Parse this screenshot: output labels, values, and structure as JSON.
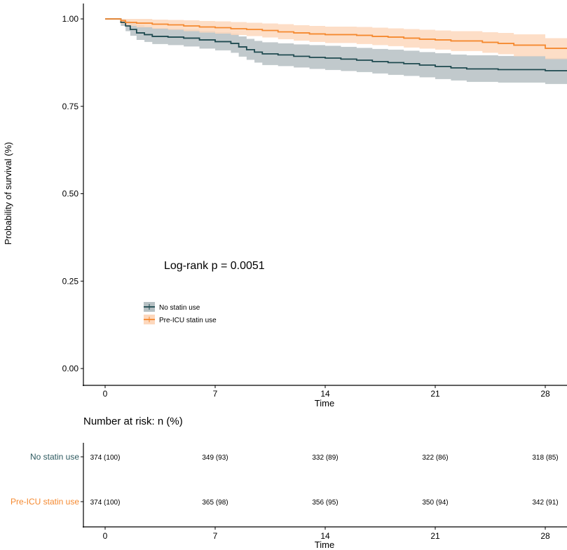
{
  "chart_data": {
    "type": "line",
    "subtype": "kaplan-meier",
    "xlabel": "Time",
    "ylabel": "Probability of survival (%)",
    "xlim": [
      0,
      30
    ],
    "ylim": [
      0,
      1
    ],
    "xticks": [
      "0",
      "7",
      "14",
      "21",
      "28"
    ],
    "xtick_values": [
      0,
      7,
      14,
      21,
      28
    ],
    "yticks": [
      "0.00",
      "0.25",
      "0.50",
      "0.75",
      "1.00"
    ],
    "ytick_values": [
      0,
      0.25,
      0.5,
      0.75,
      1
    ],
    "annotation": "Log-rank p = 0.0051",
    "legend_placement": "inside-left",
    "series": [
      {
        "name": "No statin use",
        "color": "#1f4a50",
        "band_color": "#b6c0c3",
        "time": [
          0,
          1,
          1.3,
          1.6,
          2,
          2.5,
          3,
          4,
          5,
          6,
          7,
          8,
          8.5,
          9,
          9.5,
          10,
          11,
          12,
          13,
          14,
          15,
          16,
          17,
          18,
          19,
          20,
          21,
          22,
          23,
          25,
          28,
          29.6
        ],
        "surv": [
          1,
          0.99,
          0.98,
          0.97,
          0.96,
          0.955,
          0.95,
          0.948,
          0.945,
          0.94,
          0.935,
          0.93,
          0.92,
          0.912,
          0.905,
          0.9,
          0.897,
          0.893,
          0.89,
          0.888,
          0.885,
          0.882,
          0.878,
          0.875,
          0.872,
          0.868,
          0.864,
          0.86,
          0.857,
          0.855,
          0.852,
          0.852
        ],
        "lower": [
          1,
          0.98,
          0.965,
          0.952,
          0.94,
          0.934,
          0.928,
          0.925,
          0.921,
          0.915,
          0.91,
          0.903,
          0.892,
          0.883,
          0.875,
          0.868,
          0.865,
          0.861,
          0.857,
          0.854,
          0.851,
          0.848,
          0.844,
          0.84,
          0.837,
          0.833,
          0.828,
          0.824,
          0.82,
          0.818,
          0.814,
          0.814
        ],
        "upper": [
          1,
          1,
          0.995,
          0.99,
          0.982,
          0.978,
          0.974,
          0.972,
          0.97,
          0.966,
          0.962,
          0.958,
          0.95,
          0.943,
          0.937,
          0.933,
          0.93,
          0.927,
          0.925,
          0.923,
          0.92,
          0.917,
          0.914,
          0.912,
          0.909,
          0.905,
          0.902,
          0.898,
          0.896,
          0.894,
          0.888,
          0.888
        ]
      },
      {
        "name": "Pre-ICU statin use",
        "color": "#f5892f",
        "band_color": "#fdd8bd",
        "time": [
          0,
          1,
          1.3,
          2,
          3,
          4,
          5,
          6,
          7,
          8,
          9,
          10,
          11,
          12,
          13,
          14,
          16,
          17,
          18,
          19,
          20,
          21,
          22,
          24,
          25,
          26,
          28,
          29.6
        ],
        "surv": [
          1,
          0.995,
          0.99,
          0.988,
          0.985,
          0.983,
          0.98,
          0.977,
          0.975,
          0.972,
          0.97,
          0.967,
          0.963,
          0.96,
          0.957,
          0.955,
          0.953,
          0.95,
          0.948,
          0.945,
          0.942,
          0.94,
          0.937,
          0.933,
          0.93,
          0.925,
          0.916,
          0.916
        ],
        "lower": [
          1,
          0.986,
          0.98,
          0.976,
          0.972,
          0.969,
          0.965,
          0.961,
          0.958,
          0.954,
          0.951,
          0.947,
          0.942,
          0.938,
          0.934,
          0.931,
          0.928,
          0.925,
          0.922,
          0.918,
          0.915,
          0.912,
          0.908,
          0.903,
          0.899,
          0.893,
          0.885,
          0.885
        ],
        "upper": [
          1,
          1,
          1,
          1,
          0.998,
          0.997,
          0.996,
          0.994,
          0.993,
          0.991,
          0.989,
          0.987,
          0.985,
          0.982,
          0.98,
          0.978,
          0.977,
          0.975,
          0.973,
          0.971,
          0.969,
          0.967,
          0.965,
          0.962,
          0.96,
          0.956,
          0.945,
          0.945
        ]
      }
    ]
  },
  "risk_table": {
    "title": "Number at risk: n (%)",
    "xlabel": "Time",
    "rows": [
      {
        "label": "No statin use",
        "color": "#2e5a60",
        "values": [
          "374 (100)",
          "349 (93)",
          "332 (89)",
          "322 (86)",
          "318 (85)"
        ]
      },
      {
        "label": "Pre-ICU statin use",
        "color": "#f5892f",
        "values": [
          "374 (100)",
          "365 (98)",
          "356 (95)",
          "350 (94)",
          "342 (91)"
        ]
      }
    ]
  }
}
